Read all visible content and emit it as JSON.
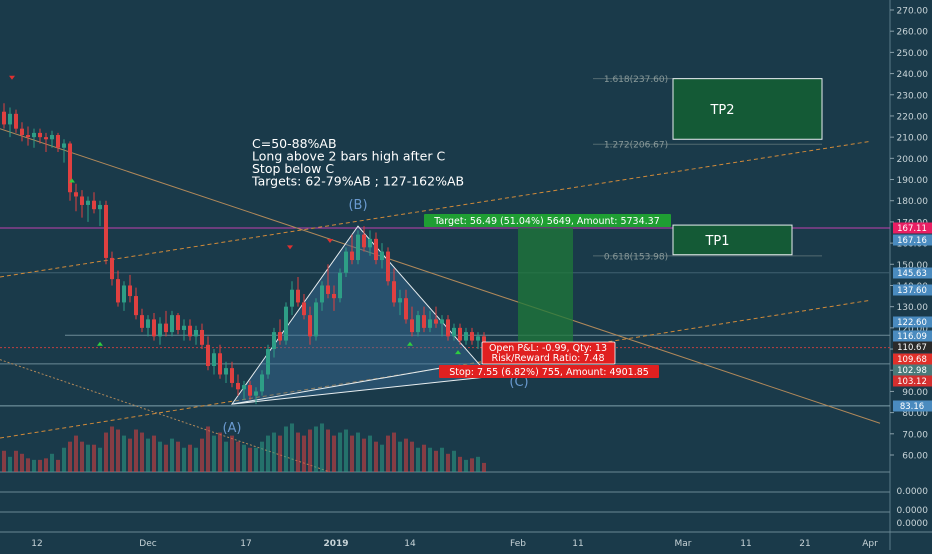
{
  "chart_data": {
    "type": "candlestick",
    "price_axis": {
      "min": 50,
      "max": 275,
      "ticks": [
        60,
        70,
        80,
        90,
        100,
        110,
        120,
        130,
        140,
        150,
        160,
        170,
        180,
        190,
        200,
        210,
        220,
        230,
        240,
        250,
        260,
        270
      ],
      "tick_labels": [
        "60.00",
        "70.00",
        "80.00",
        "90.00",
        "100.00",
        "110.00",
        "120.00",
        "130.00",
        "140.00",
        "150.00",
        "160.00",
        "170.00",
        "180.00",
        "190.00",
        "200.00",
        "210.00",
        "220.00",
        "230.00",
        "240.00",
        "250.00",
        "260.00",
        "270.00"
      ],
      "price_tags": [
        {
          "value": 167.11,
          "label": "167.11",
          "color": "#e91e63"
        },
        {
          "value": 167.16,
          "label": "167.16",
          "color": "#4a8bbf"
        },
        {
          "value": 145.63,
          "label": "145.63",
          "color": "#4a8bbf"
        },
        {
          "value": 137.6,
          "label": "137.60",
          "color": "#4a8bbf"
        },
        {
          "value": 122.6,
          "label": "122.60",
          "color": "#4a8bbf"
        },
        {
          "value": 116.09,
          "label": "116.09",
          "color": "#4a8bbf"
        },
        {
          "value": 110.67,
          "label": "110.67",
          "color": "#2a2a2a"
        },
        {
          "value": 109.68,
          "label": "109.68",
          "color": "#e0302a"
        },
        {
          "value": 102.98,
          "label": "102.98",
          "color": "#4a7a7a"
        },
        {
          "value": 103.12,
          "label": "103.12",
          "color": "#d32f2f"
        },
        {
          "value": 83.16,
          "label": "83.16",
          "color": "#4a8bbf"
        }
      ]
    },
    "indicator_axis": {
      "tick_labels": [
        "0.0000",
        "0.0000",
        "0.0000"
      ]
    },
    "time_axis": {
      "labels": [
        "12",
        "Dec",
        "17",
        "2019",
        "14",
        "Feb",
        "11",
        "Mar",
        "11",
        "21",
        "Apr"
      ]
    },
    "candles": [
      {
        "o": 222,
        "h": 226,
        "l": 214,
        "c": 216
      },
      {
        "o": 216,
        "h": 224,
        "l": 210,
        "c": 221
      },
      {
        "o": 221,
        "h": 223,
        "l": 212,
        "c": 214
      },
      {
        "o": 214,
        "h": 217,
        "l": 208,
        "c": 211
      },
      {
        "o": 211,
        "h": 215,
        "l": 206,
        "c": 210
      },
      {
        "o": 210,
        "h": 214,
        "l": 205,
        "c": 212
      },
      {
        "o": 212,
        "h": 214,
        "l": 207,
        "c": 210
      },
      {
        "o": 210,
        "h": 212,
        "l": 203,
        "c": 209
      },
      {
        "o": 209,
        "h": 213,
        "l": 205,
        "c": 211
      },
      {
        "o": 211,
        "h": 212,
        "l": 203,
        "c": 205
      },
      {
        "o": 205,
        "h": 209,
        "l": 198,
        "c": 207
      },
      {
        "o": 207,
        "h": 208,
        "l": 180,
        "c": 184
      },
      {
        "o": 184,
        "h": 188,
        "l": 175,
        "c": 182
      },
      {
        "o": 182,
        "h": 185,
        "l": 172,
        "c": 178
      },
      {
        "o": 178,
        "h": 182,
        "l": 170,
        "c": 180
      },
      {
        "o": 180,
        "h": 184,
        "l": 174,
        "c": 176
      },
      {
        "o": 176,
        "h": 180,
        "l": 168,
        "c": 178
      },
      {
        "o": 178,
        "h": 180,
        "l": 150,
        "c": 153
      },
      {
        "o": 153,
        "h": 156,
        "l": 140,
        "c": 143
      },
      {
        "o": 143,
        "h": 147,
        "l": 130,
        "c": 132
      },
      {
        "o": 132,
        "h": 142,
        "l": 128,
        "c": 140
      },
      {
        "o": 140,
        "h": 145,
        "l": 132,
        "c": 135
      },
      {
        "o": 135,
        "h": 139,
        "l": 124,
        "c": 126
      },
      {
        "o": 126,
        "h": 129,
        "l": 118,
        "c": 120
      },
      {
        "o": 120,
        "h": 126,
        "l": 116,
        "c": 124
      },
      {
        "o": 124,
        "h": 127,
        "l": 114,
        "c": 116
      },
      {
        "o": 116,
        "h": 125,
        "l": 112,
        "c": 122
      },
      {
        "o": 122,
        "h": 128,
        "l": 116,
        "c": 118
      },
      {
        "o": 118,
        "h": 128,
        "l": 116,
        "c": 126
      },
      {
        "o": 126,
        "h": 127,
        "l": 117,
        "c": 119
      },
      {
        "o": 119,
        "h": 124,
        "l": 114,
        "c": 121
      },
      {
        "o": 121,
        "h": 124,
        "l": 114,
        "c": 116
      },
      {
        "o": 116,
        "h": 121,
        "l": 112,
        "c": 119
      },
      {
        "o": 119,
        "h": 122,
        "l": 110,
        "c": 112
      },
      {
        "o": 112,
        "h": 116,
        "l": 100,
        "c": 102
      },
      {
        "o": 102,
        "h": 110,
        "l": 98,
        "c": 108
      },
      {
        "o": 108,
        "h": 112,
        "l": 96,
        "c": 98
      },
      {
        "o": 98,
        "h": 104,
        "l": 94,
        "c": 101
      },
      {
        "o": 101,
        "h": 104,
        "l": 92,
        "c": 94
      },
      {
        "o": 94,
        "h": 98,
        "l": 88,
        "c": 91
      },
      {
        "o": 91,
        "h": 95,
        "l": 86,
        "c": 93
      },
      {
        "o": 93,
        "h": 95,
        "l": 86,
        "c": 88
      },
      {
        "o": 88,
        "h": 92,
        "l": 84,
        "c": 90
      },
      {
        "o": 90,
        "h": 100,
        "l": 88,
        "c": 98
      },
      {
        "o": 98,
        "h": 112,
        "l": 96,
        "c": 110
      },
      {
        "o": 110,
        "h": 120,
        "l": 106,
        "c": 118
      },
      {
        "o": 118,
        "h": 124,
        "l": 112,
        "c": 114
      },
      {
        "o": 114,
        "h": 132,
        "l": 112,
        "c": 130
      },
      {
        "o": 130,
        "h": 142,
        "l": 126,
        "c": 138
      },
      {
        "o": 138,
        "h": 144,
        "l": 130,
        "c": 132
      },
      {
        "o": 132,
        "h": 136,
        "l": 124,
        "c": 126
      },
      {
        "o": 126,
        "h": 130,
        "l": 112,
        "c": 116
      },
      {
        "o": 116,
        "h": 134,
        "l": 114,
        "c": 132
      },
      {
        "o": 132,
        "h": 142,
        "l": 128,
        "c": 140
      },
      {
        "o": 140,
        "h": 150,
        "l": 134,
        "c": 136
      },
      {
        "o": 136,
        "h": 140,
        "l": 128,
        "c": 134
      },
      {
        "o": 134,
        "h": 148,
        "l": 132,
        "c": 146
      },
      {
        "o": 146,
        "h": 158,
        "l": 144,
        "c": 156
      },
      {
        "o": 156,
        "h": 164,
        "l": 150,
        "c": 152
      },
      {
        "o": 152,
        "h": 166,
        "l": 150,
        "c": 164
      },
      {
        "o": 164,
        "h": 168,
        "l": 156,
        "c": 158
      },
      {
        "o": 158,
        "h": 166,
        "l": 154,
        "c": 162
      },
      {
        "o": 162,
        "h": 165,
        "l": 150,
        "c": 152
      },
      {
        "o": 152,
        "h": 160,
        "l": 148,
        "c": 156
      },
      {
        "o": 156,
        "h": 158,
        "l": 140,
        "c": 142
      },
      {
        "o": 142,
        "h": 148,
        "l": 130,
        "c": 132
      },
      {
        "o": 132,
        "h": 138,
        "l": 126,
        "c": 134
      },
      {
        "o": 134,
        "h": 138,
        "l": 122,
        "c": 124
      },
      {
        "o": 124,
        "h": 130,
        "l": 116,
        "c": 118
      },
      {
        "o": 118,
        "h": 128,
        "l": 116,
        "c": 126
      },
      {
        "o": 126,
        "h": 130,
        "l": 118,
        "c": 120
      },
      {
        "o": 120,
        "h": 128,
        "l": 118,
        "c": 124
      },
      {
        "o": 124,
        "h": 130,
        "l": 120,
        "c": 122
      },
      {
        "o": 122,
        "h": 126,
        "l": 116,
        "c": 124
      },
      {
        "o": 124,
        "h": 126,
        "l": 114,
        "c": 116
      },
      {
        "o": 116,
        "h": 122,
        "l": 114,
        "c": 120
      },
      {
        "o": 120,
        "h": 122,
        "l": 112,
        "c": 114
      },
      {
        "o": 114,
        "h": 120,
        "l": 112,
        "c": 118
      },
      {
        "o": 118,
        "h": 120,
        "l": 112,
        "c": 114
      },
      {
        "o": 114,
        "h": 118,
        "l": 110,
        "c": 116
      },
      {
        "o": 116,
        "h": 118,
        "l": 110,
        "c": 112
      }
    ],
    "volumes": [
      70,
      50,
      70,
      60,
      45,
      40,
      40,
      45,
      60,
      40,
      80,
      100,
      120,
      100,
      90,
      90,
      80,
      130,
      150,
      140,
      120,
      110,
      140,
      130,
      110,
      120,
      100,
      90,
      110,
      100,
      80,
      90,
      80,
      110,
      150,
      120,
      130,
      100,
      120,
      100,
      90,
      80,
      80,
      100,
      120,
      130,
      120,
      150,
      160,
      130,
      120,
      140,
      150,
      160,
      140,
      120,
      130,
      140,
      120,
      130,
      110,
      120,
      100,
      90,
      120,
      130,
      100,
      110,
      100,
      80,
      90,
      80,
      70,
      80,
      60,
      70,
      50,
      40,
      45,
      50,
      30
    ],
    "volume_max": 300,
    "pattern_points": [
      {
        "label": "(A)",
        "bar": 42,
        "price": 84
      },
      {
        "label": "(B)",
        "bar": 61,
        "price": 168
      },
      {
        "label": "(C)",
        "bar": 81,
        "price": 97
      }
    ],
    "fib_levels": [
      {
        "label": "1.618(237.60)",
        "price": 237.6
      },
      {
        "label": "1.272(206.67)",
        "price": 206.67
      },
      {
        "label": "0.618(153.98)",
        "price": 153.98
      }
    ],
    "targets": [
      {
        "label": "TP2",
        "price_top": 237.6,
        "price_bottom": 209
      },
      {
        "label": "TP1",
        "price_top": 168.5,
        "price_bottom": 154.5
      }
    ],
    "annotation_lines": [
      "C=50-88%AB",
      "Long above 2 bars high after C",
      "Stop below C",
      "Targets: 62-79%AB ; 127-162%AB"
    ],
    "position": {
      "target_label": "Target: 56.49 (51.04%) 5649, Amount: 5734.37",
      "pnl_label": "Open P&L: -0.99, Qty: 13",
      "rr_label": "Risk/Reward Ratio: 7.48",
      "stop_label": "Stop: 7.55 (6.82%) 755, Amount: 4901.85",
      "entry_price": 110.67,
      "target_price": 167.16,
      "stop_price": 103.12
    },
    "colors": {
      "background": "#1a3a4a",
      "up": "#2e9e86",
      "down": "#e04040",
      "pattern_fill": "#3a6e98",
      "target_zone": "#1f7a3a",
      "target_label_bg": "#1f9e33",
      "stop_label_bg": "#e02020"
    }
  }
}
